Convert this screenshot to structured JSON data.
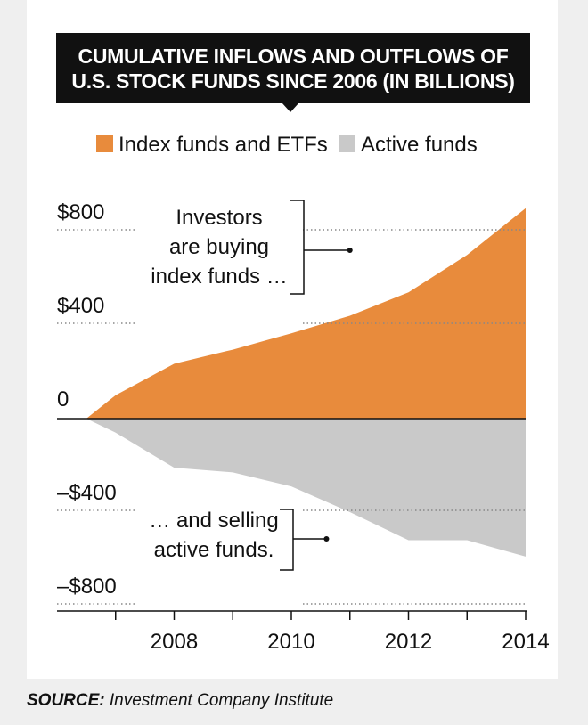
{
  "chart_data": {
    "type": "area",
    "title_lines": [
      "CUMULATIVE INFLOWS AND OUTFLOWS OF",
      "U.S. STOCK FUNDS SINCE 2006 (IN BILLIONS)"
    ],
    "series": [
      {
        "name": "Index funds and ETFs",
        "color": "#e88b3c",
        "x": [
          2006.5,
          2007,
          2008,
          2009,
          2010,
          2011,
          2012,
          2013,
          2014
        ],
        "values": [
          0,
          100,
          235,
          295,
          365,
          440,
          540,
          700,
          900
        ]
      },
      {
        "name": "Active funds",
        "color": "#c9c9c9",
        "x": [
          2006.5,
          2007,
          2008,
          2009,
          2010,
          2011,
          2012,
          2013,
          2014
        ],
        "values": [
          0,
          -60,
          -210,
          -230,
          -290,
          -400,
          -520,
          -520,
          -590
        ]
      }
    ],
    "x_ticks": [
      2007,
      2008,
      2009,
      2010,
      2011,
      2012,
      2013,
      2014
    ],
    "x_tick_labels": [
      {
        "x": 2008,
        "label": "2008"
      },
      {
        "x": 2010,
        "label": "2010"
      },
      {
        "x": 2012,
        "label": "2012"
      },
      {
        "x": 2014,
        "label": "2014"
      }
    ],
    "y_ticks": [
      {
        "value": 800,
        "label": "$800"
      },
      {
        "value": 400,
        "label": "$400"
      },
      {
        "value": 0,
        "label": "0"
      },
      {
        "value": -400,
        "label": "–$400"
      },
      {
        "value": -800,
        "label": "–$800"
      }
    ],
    "ylim": [
      -800,
      800
    ],
    "xlim": [
      2006,
      2014
    ],
    "legend_position": "top",
    "annotations": [
      {
        "lines": [
          "Investors",
          "are buying",
          "index funds …"
        ],
        "points_to": {
          "x": 2011,
          "y": 720
        }
      },
      {
        "lines": [
          "… and selling",
          "active funds."
        ],
        "points_to": {
          "x": 2010.6,
          "y": -500
        }
      }
    ],
    "grid": "dotted lines at ±400 and ±800"
  },
  "source": {
    "label": "SOURCE:",
    "text": "Investment Company Institute"
  }
}
